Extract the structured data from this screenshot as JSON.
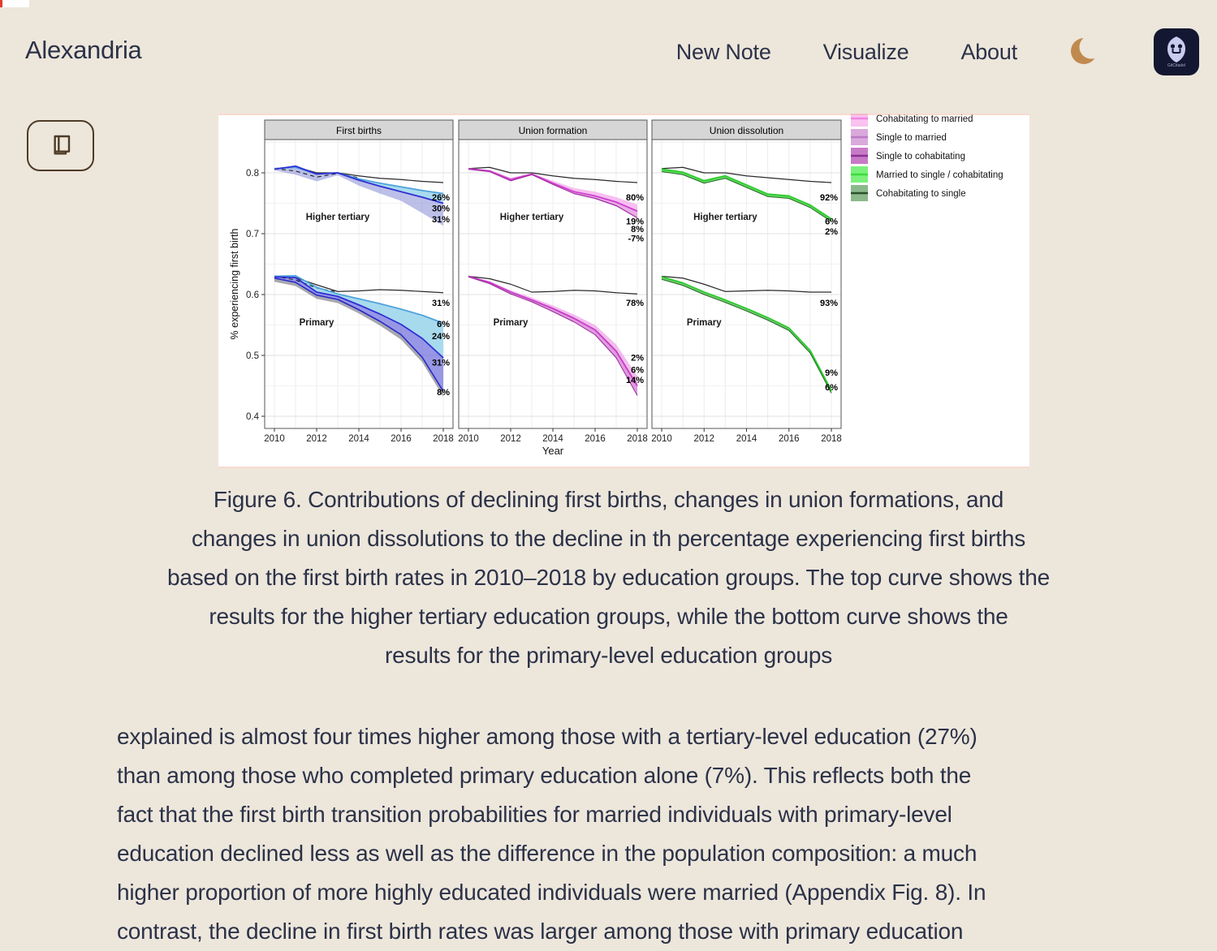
{
  "page": {
    "background": "#EDE6DB",
    "text_color": "#2B3248",
    "accent_moon": "#C08A4E",
    "accent_brown": "#4E3B27"
  },
  "header": {
    "brand": "Alexandria",
    "nav": [
      {
        "label": "New Note"
      },
      {
        "label": "Visualize"
      },
      {
        "label": "About"
      }
    ],
    "theme_toggle_icon": "moon-icon",
    "logo_text": "GitCitadel"
  },
  "toolbar": {
    "reader_button_icon": "book-icon"
  },
  "figure": {
    "caption_lines": [
      "Figure 6. Contributions of declining first births, changes in union formations, and",
      "changes in union dissolutions to the decline in th percentage experiencing first births",
      "based on the first birth rates in 2010–2018 by education groups. The top curve shows the",
      "results for the higher tertiary education groups, while the bottom curve shows the",
      "results for the primary-level education groups"
    ]
  },
  "article": {
    "lines": [
      "explained is almost four times higher among those with a tertiary-level education (27%)",
      "than among those who completed primary education alone (7%). This reflects both the",
      "fact that the first birth transition probabilities for married individuals with primary-level",
      "education declined less as well as the difference in the population composition: a much",
      "higher proportion of more highly educated individuals were married (Appendix Fig. 8). In",
      "contrast, the decline in first birth rates was larger among those with primary education"
    ]
  },
  "chart_data": {
    "type": "line",
    "title": "",
    "xlabel": "Year",
    "ylabel": "% experiencing first birth",
    "x": [
      2010,
      2011,
      2012,
      2013,
      2014,
      2015,
      2016,
      2017,
      2018
    ],
    "xticks": [
      "2010",
      "2012",
      "2014",
      "2016",
      "2018"
    ],
    "yticks": [
      "0.4",
      "0.5",
      "0.6",
      "0.7",
      "0.8"
    ],
    "ylim": [
      0.38,
      0.853
    ],
    "panels": [
      {
        "title": "First births",
        "groups": [
          {
            "name": "Higher tertiary",
            "name_pos": {
              "year": 2013,
              "v": 0.728
            },
            "series": {
              "black": [
                0.807,
                0.81,
                0.8,
                0.8,
                0.795,
                0.791,
                0.789,
                0.786,
                0.784
              ],
              "dash": [
                0.807,
                0.803,
                0.793,
                0.799,
                0.792
              ],
              "cyan": [
                0.807,
                0.809,
                0.798,
                0.8,
                0.79,
                0.783,
                0.777,
                0.771,
                0.766
              ],
              "blue": [
                0.806,
                0.811,
                0.798,
                0.8,
                0.788,
                0.778,
                0.769,
                0.76,
                0.75
              ],
              "lower": [
                0.804,
                0.797,
                0.786,
                0.796,
                0.779,
                0.766,
                0.754,
                0.734,
                0.713
              ]
            },
            "draw": [
              {
                "kind": "fill",
                "upper": "cyan",
                "lower": "blue",
                "color": "#9FD6EC",
                "opacity": 0.9
              },
              {
                "kind": "fill",
                "upper": "blue",
                "lower": "lower",
                "color": "#9096D8",
                "opacity": 0.6
              },
              {
                "kind": "line",
                "ref": "black",
                "color": "#2A2A2A",
                "w": 1.2
              },
              {
                "kind": "line",
                "ref": "dash",
                "color": "#111111",
                "w": 1,
                "dash": true
              },
              {
                "kind": "line",
                "ref": "cyan",
                "color": "#4FA3DB",
                "w": 1.8
              },
              {
                "kind": "line",
                "ref": "blue",
                "color": "#2F2FD3",
                "w": 1.8
              }
            ],
            "labels": [
              {
                "text": "26%",
                "v": 0.76
              },
              {
                "text": "30%",
                "v": 0.742
              },
              {
                "text": "31%",
                "v": 0.724
              }
            ]
          },
          {
            "name": "Primary",
            "name_pos": {
              "year": 2012,
              "v": 0.555
            },
            "series": {
              "black": [
                0.63,
                0.628,
                0.616,
                0.605,
                0.606,
                0.608,
                0.607,
                0.605,
                0.603
              ],
              "dash": [
                0.63,
                0.624,
                0.611,
                0.604
              ],
              "cyan": [
                0.63,
                0.631,
                0.612,
                0.601,
                0.593,
                0.585,
                0.576,
                0.566,
                0.553
              ],
              "blue": [
                0.629,
                0.628,
                0.604,
                0.597,
                0.583,
                0.568,
                0.551,
                0.528,
                0.496
              ],
              "lower": [
                0.627,
                0.62,
                0.599,
                0.592,
                0.575,
                0.556,
                0.534,
                0.497,
                0.441
              ],
              "shadow": [
                0.621,
                0.614,
                0.593,
                0.586,
                0.569,
                0.549,
                0.526,
                0.489,
                0.432
              ]
            },
            "draw": [
              {
                "kind": "fill",
                "upper": "cyan",
                "lower": "blue",
                "color": "#9FD6EC",
                "opacity": 0.9
              },
              {
                "kind": "fill",
                "upper": "blue",
                "lower": "lower",
                "color": "#6B6BDC",
                "opacity": 0.7
              },
              {
                "kind": "fill",
                "upper": "lower",
                "lower": "shadow",
                "color": "#8A8A96",
                "opacity": 0.75
              },
              {
                "kind": "line",
                "ref": "black",
                "color": "#2A2A2A",
                "w": 1.2
              },
              {
                "kind": "line",
                "ref": "dash",
                "color": "#111111",
                "w": 1,
                "dash": true
              },
              {
                "kind": "line",
                "ref": "cyan",
                "color": "#4FA3DB",
                "w": 1.8
              },
              {
                "kind": "line",
                "ref": "blue",
                "color": "#2F2FD3",
                "w": 1.8
              },
              {
                "kind": "line",
                "ref": "lower",
                "color": "#2828C8",
                "w": 1.6
              }
            ],
            "labels": [
              {
                "text": "31%",
                "v": 0.587
              },
              {
                "text": "6%",
                "v": 0.552
              },
              {
                "text": "24%",
                "v": 0.532
              },
              {
                "text": "31%",
                "v": 0.489
              },
              {
                "text": "8%",
                "v": 0.44
              }
            ]
          }
        ]
      },
      {
        "title": "Union formation",
        "groups": [
          {
            "name": "Higher tertiary",
            "name_pos": {
              "year": 2013,
              "v": 0.728
            },
            "series": {
              "black": [
                0.807,
                0.809,
                0.8,
                0.8,
                0.795,
                0.791,
                0.789,
                0.786,
                0.784
              ],
              "top": [
                0.807,
                0.805,
                0.792,
                0.799,
                0.787,
                0.775,
                0.769,
                0.76,
                0.748
              ],
              "mid": [
                0.807,
                0.803,
                0.789,
                0.798,
                0.783,
                0.769,
                0.762,
                0.752,
                0.737
              ],
              "low": [
                0.806,
                0.802,
                0.787,
                0.797,
                0.781,
                0.766,
                0.758,
                0.746,
                0.726
              ]
            },
            "draw": [
              {
                "kind": "fill",
                "upper": "top",
                "lower": "mid",
                "color": "#F6B4EE",
                "opacity": 0.85
              },
              {
                "kind": "fill",
                "upper": "mid",
                "lower": "low",
                "color": "#E18AE0",
                "opacity": 0.7
              },
              {
                "kind": "line",
                "ref": "black",
                "color": "#2A2A2A",
                "w": 1.2
              },
              {
                "kind": "line",
                "ref": "mid",
                "color": "#CE3FCE",
                "w": 1.8
              },
              {
                "kind": "line",
                "ref": "low",
                "color": "#A02CA0",
                "w": 1.2
              }
            ],
            "labels": [
              {
                "text": "80%",
                "v": 0.76
              },
              {
                "text": "19%",
                "v": 0.721
              },
              {
                "text": "8%",
                "v": 0.708
              },
              {
                "text": "-7%",
                "v": 0.693
              }
            ]
          },
          {
            "name": "Primary",
            "name_pos": {
              "year": 2012,
              "v": 0.555
            },
            "series": {
              "black": [
                0.63,
                0.626,
                0.617,
                0.604,
                0.605,
                0.607,
                0.606,
                0.603,
                0.601
              ],
              "top": [
                0.63,
                0.622,
                0.607,
                0.595,
                0.582,
                0.567,
                0.55,
                0.518,
                0.466
              ],
              "mid": [
                0.63,
                0.62,
                0.604,
                0.591,
                0.577,
                0.561,
                0.542,
                0.507,
                0.45
              ],
              "low": [
                0.629,
                0.618,
                0.601,
                0.588,
                0.572,
                0.555,
                0.534,
                0.496,
                0.434
              ]
            },
            "draw": [
              {
                "kind": "fill",
                "upper": "top",
                "lower": "mid",
                "color": "#F0B0EA",
                "opacity": 0.85
              },
              {
                "kind": "fill",
                "upper": "mid",
                "lower": "low",
                "color": "#D678D4",
                "opacity": 0.75
              },
              {
                "kind": "line",
                "ref": "black",
                "color": "#2A2A2A",
                "w": 1.2
              },
              {
                "kind": "line",
                "ref": "mid",
                "color": "#C83CC8",
                "w": 1.8
              },
              {
                "kind": "line",
                "ref": "low",
                "color": "#952A95",
                "w": 1
              }
            ],
            "labels": [
              {
                "text": "78%",
                "v": 0.587
              },
              {
                "text": "2%",
                "v": 0.497
              },
              {
                "text": "6%",
                "v": 0.477
              },
              {
                "text": "14%",
                "v": 0.46
              }
            ]
          }
        ]
      },
      {
        "title": "Union dissolution",
        "groups": [
          {
            "name": "Higher tertiary",
            "name_pos": {
              "year": 2013,
              "v": 0.728
            },
            "series": {
              "black": [
                0.807,
                0.809,
                0.8,
                0.8,
                0.795,
                0.792,
                0.789,
                0.786,
                0.784
              ],
              "grn": [
                0.806,
                0.801,
                0.787,
                0.795,
                0.78,
                0.765,
                0.762,
                0.747,
                0.724
              ],
              "dk": [
                0.802,
                0.797,
                0.783,
                0.791,
                0.776,
                0.761,
                0.758,
                0.743,
                0.72
              ]
            },
            "draw": [
              {
                "kind": "fill",
                "upper": "grn",
                "lower": "dk",
                "color": "#57D957",
                "opacity": 0.9
              },
              {
                "kind": "line",
                "ref": "black",
                "color": "#2A2A2A",
                "w": 1.2
              },
              {
                "kind": "line",
                "ref": "grn",
                "color": "#2ECC2E",
                "w": 2
              },
              {
                "kind": "line",
                "ref": "dk",
                "color": "#1F6B1F",
                "w": 1
              }
            ],
            "labels": [
              {
                "text": "92%",
                "v": 0.76
              },
              {
                "text": "6%",
                "v": 0.721
              },
              {
                "text": "2%",
                "v": 0.704
              }
            ]
          },
          {
            "name": "Primary",
            "name_pos": {
              "year": 2012,
              "v": 0.555
            },
            "series": {
              "black": [
                0.63,
                0.627,
                0.617,
                0.605,
                0.606,
                0.607,
                0.606,
                0.604,
                0.604
              ],
              "grn": [
                0.629,
                0.619,
                0.604,
                0.591,
                0.577,
                0.562,
                0.545,
                0.508,
                0.442
              ],
              "dk": [
                0.625,
                0.615,
                0.6,
                0.587,
                0.573,
                0.558,
                0.541,
                0.504,
                0.438
              ]
            },
            "draw": [
              {
                "kind": "fill",
                "upper": "grn",
                "lower": "dk",
                "color": "#6ABF69",
                "opacity": 0.85
              },
              {
                "kind": "line",
                "ref": "black",
                "color": "#2A2A2A",
                "w": 1.2
              },
              {
                "kind": "line",
                "ref": "grn",
                "color": "#2ECC2E",
                "w": 2
              },
              {
                "kind": "line",
                "ref": "dk",
                "color": "#1F6B1F",
                "w": 1
              }
            ],
            "labels": [
              {
                "text": "93%",
                "v": 0.587
              },
              {
                "text": "9%",
                "v": 0.472
              },
              {
                "text": "6%",
                "v": 0.448
              }
            ]
          }
        ]
      }
    ],
    "legend": [
      {
        "label": "Cohabitating to married",
        "fill": "#F9C2EF",
        "line": "#F085E2",
        "clipped": true
      },
      {
        "label": "Single to married",
        "fill": "#D9A9DC",
        "line": "#BB79C4"
      },
      {
        "label": "Single to cohabitating",
        "fill": "#C77BC7",
        "line": "#8E2F92"
      },
      {
        "label": "Married to single / cohabitating",
        "fill": "#7BF07B",
        "line": "#3BDB3B"
      },
      {
        "label": "Cohabitating to single",
        "fill": "#8CB98C",
        "line": "#2A522A"
      }
    ],
    "legend_position": "top-right",
    "grid": true
  }
}
